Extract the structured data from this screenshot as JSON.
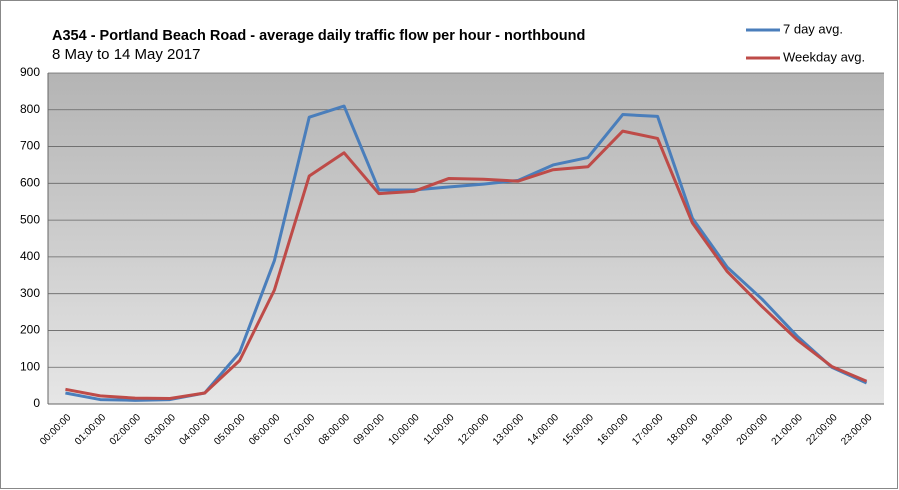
{
  "chart_data": {
    "type": "line",
    "title": "A354 - Portland Beach Road - average daily traffic flow per hour - northbound",
    "subtitle": "8 May to 14 May 2017",
    "categories": [
      "00:00:00",
      "01:00:00",
      "02:00:00",
      "03:00:00",
      "04:00:00",
      "05:00:00",
      "06:00:00",
      "07:00:00",
      "08:00:00",
      "09:00:00",
      "10:00:00",
      "11:00:00",
      "12:00:00",
      "13:00:00",
      "14:00:00",
      "15:00:00",
      "16:00:00",
      "17:00:00",
      "18:00:00",
      "19:00:00",
      "20:00:00",
      "21:00:00",
      "22:00:00",
      "23:00:00"
    ],
    "series": [
      {
        "name": "7 day avg.",
        "color": "#4a7ebb",
        "values": [
          30,
          12,
          10,
          12,
          30,
          140,
          390,
          780,
          810,
          582,
          582,
          590,
          598,
          608,
          650,
          670,
          787,
          782,
          505,
          372,
          285,
          185,
          100,
          57
        ]
      },
      {
        "name": "Weekday avg.",
        "color": "#be4b48",
        "values": [
          40,
          22,
          16,
          15,
          30,
          118,
          310,
          620,
          683,
          572,
          578,
          613,
          611,
          606,
          637,
          645,
          742,
          722,
          492,
          360,
          265,
          175,
          102,
          62
        ]
      }
    ],
    "ylim": [
      0,
      900
    ],
    "yticks": [
      0,
      100,
      200,
      300,
      400,
      500,
      600,
      700,
      800,
      900
    ],
    "grid": true,
    "legend": "top-right"
  }
}
